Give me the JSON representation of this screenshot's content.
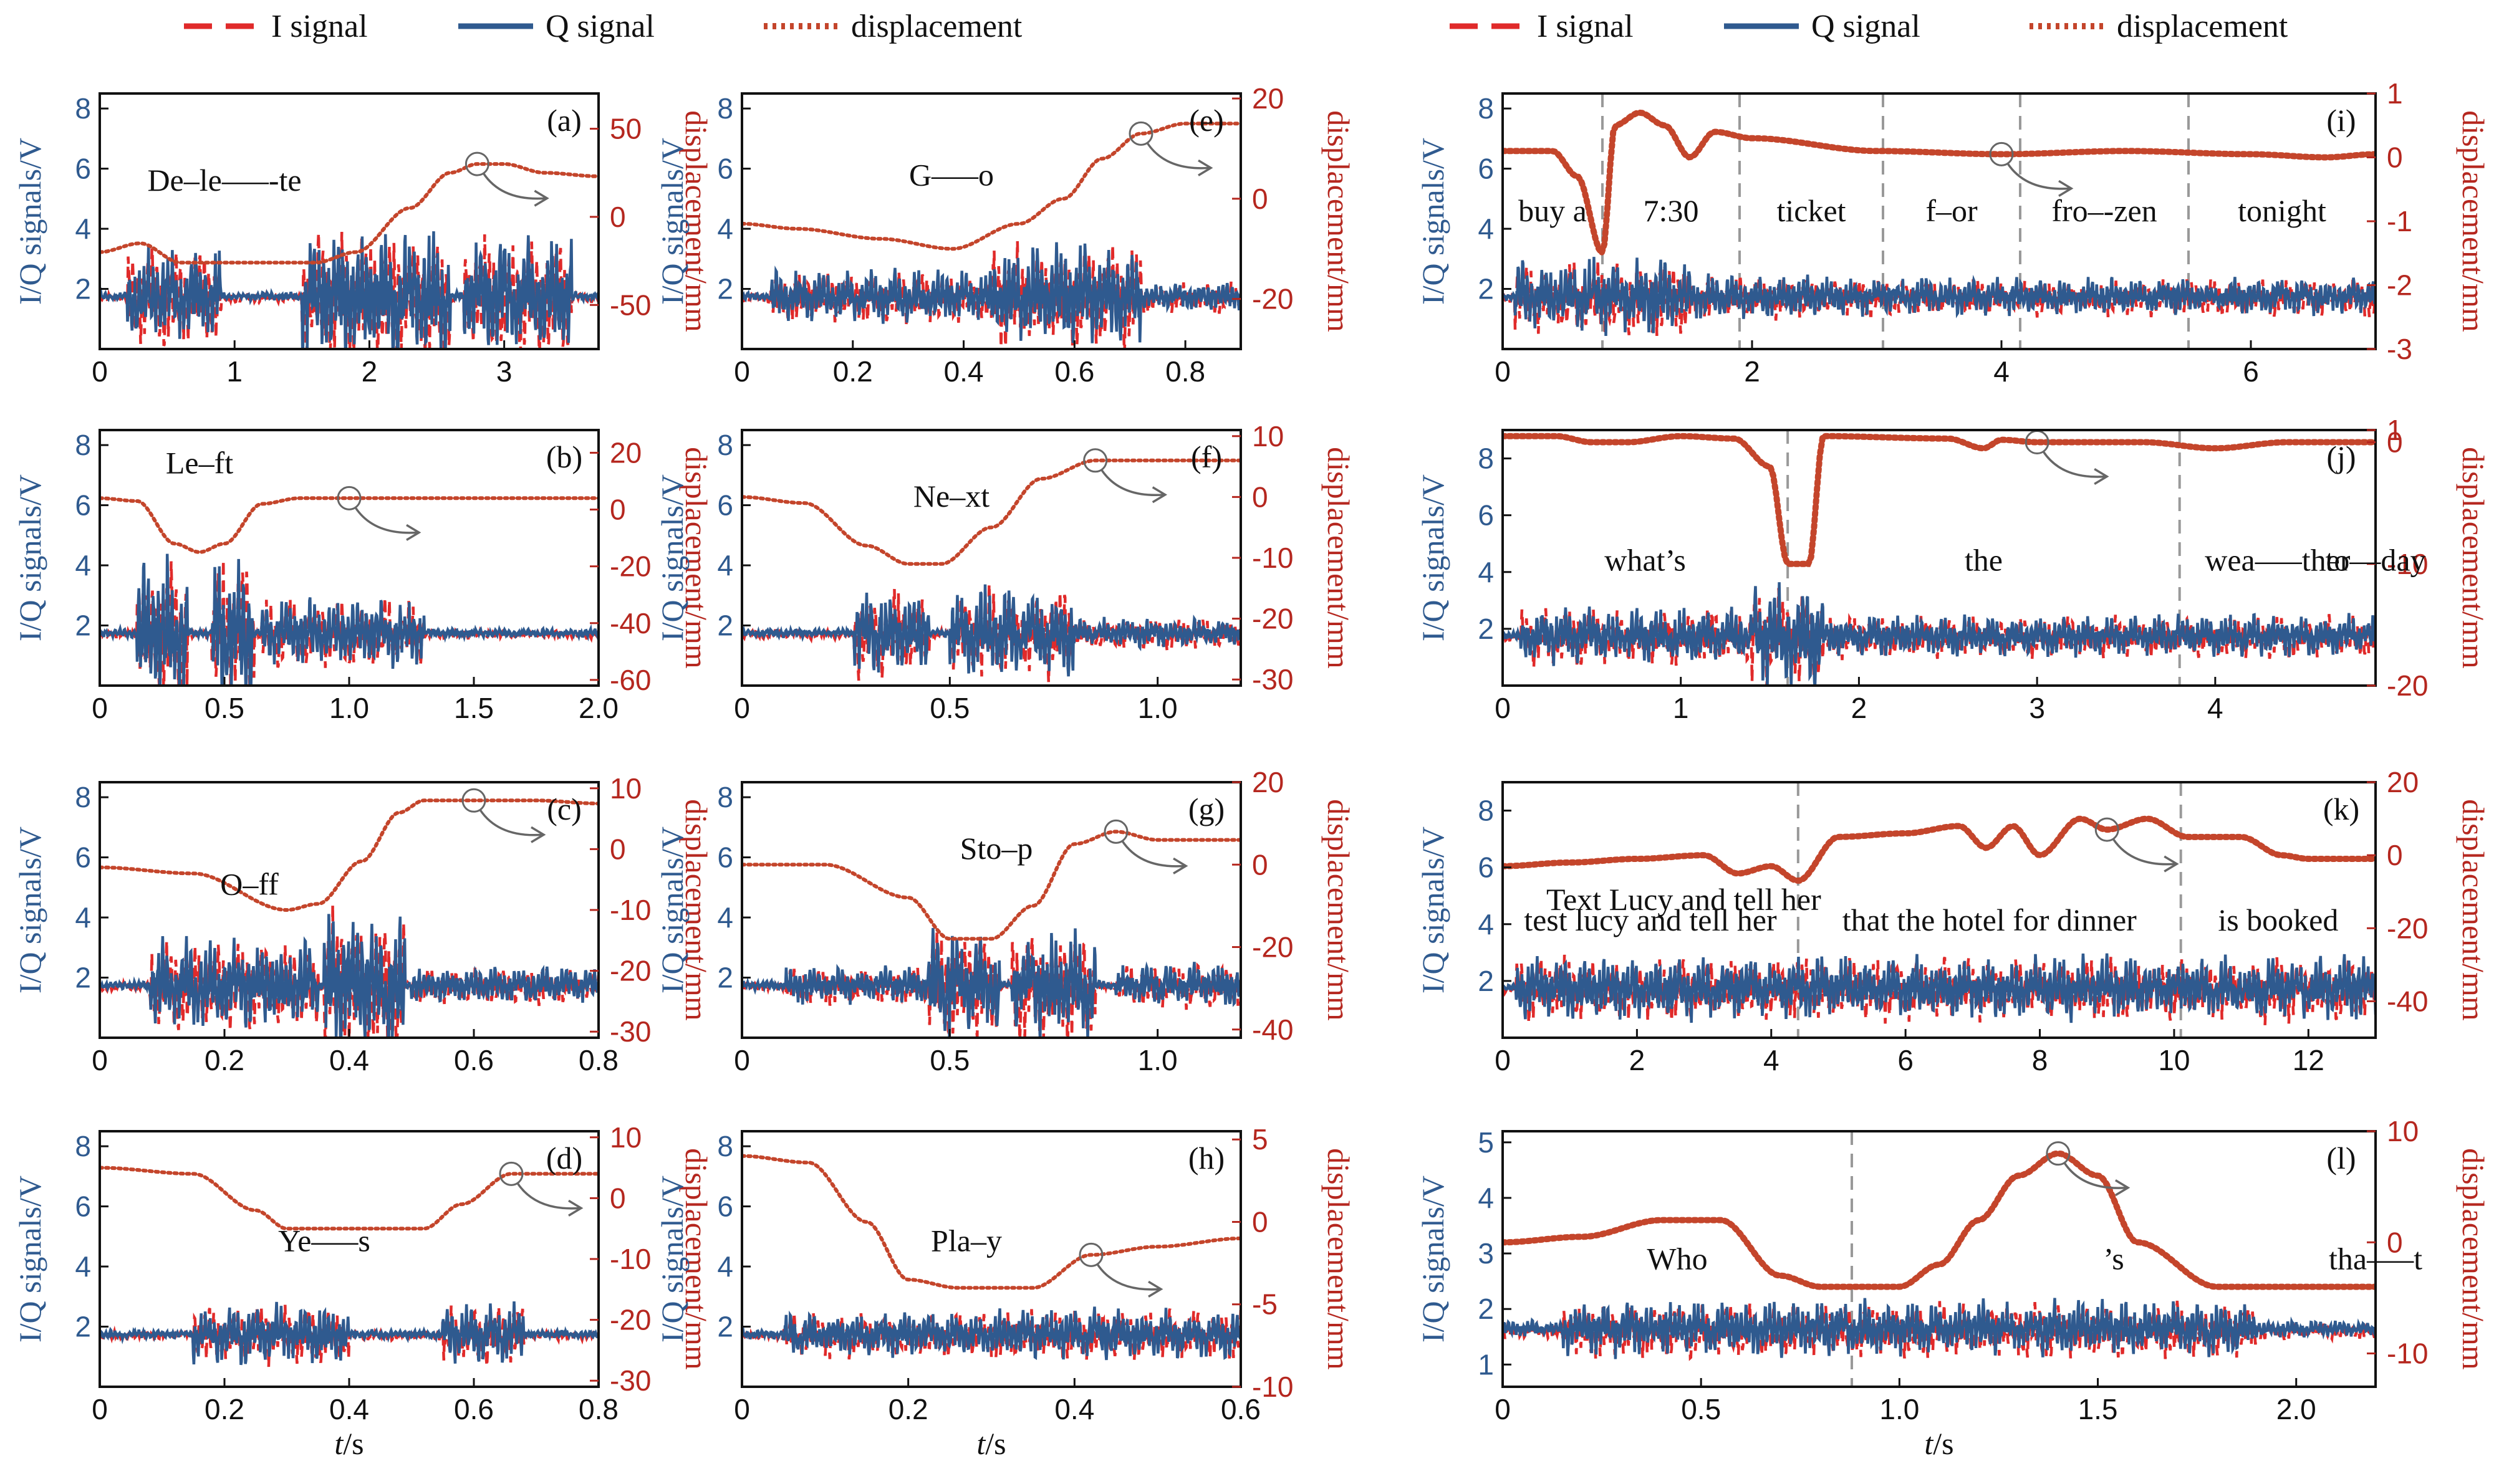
{
  "legend": [
    {
      "label": "I signal",
      "style": "dashed",
      "color": "#e02a2a"
    },
    {
      "label": "Q signal",
      "style": "solid",
      "color": "#2f5a8f"
    },
    {
      "label": "displacement",
      "style": "dotted",
      "color": "#c4452b"
    }
  ],
  "colors": {
    "i_signal": "#e02a2a",
    "q_signal": "#2f5a8f",
    "displacement": "#c4452b",
    "axis_right": "#b5271f",
    "axis_left": "#2f5a8f"
  },
  "left_axis_label": "I/Q signals/V",
  "right_axis_label": "displacement/mm",
  "x_axis_label_italic": "t",
  "x_axis_label_unit": "/s",
  "chart_data": [
    {
      "id": "a",
      "tag": "(a)",
      "type": "line",
      "words": [
        "De–le–––-te"
      ],
      "dividers": [],
      "xlim": [
        0,
        3.7
      ],
      "xticks": [
        0,
        1,
        2,
        3
      ],
      "xtick_labels": [
        "0",
        "1",
        "2",
        "3"
      ],
      "ylim": [
        0,
        8.5
      ],
      "yticks": [
        2,
        4,
        6,
        8
      ],
      "y2lim": [
        -75,
        70
      ],
      "y2ticks": [
        -50,
        0,
        50
      ],
      "bursts": [
        [
          0.2,
          0.9,
          1.3
        ],
        [
          1.5,
          2.6,
          1.8
        ],
        [
          2.7,
          3.5,
          1.7
        ]
      ],
      "displacement": {
        "x": [
          0,
          0.3,
          0.6,
          1.0,
          1.6,
          1.9,
          2.3,
          2.6,
          2.8,
          3.0,
          3.3,
          3.7
        ],
        "y": [
          -20,
          -15,
          -26,
          -26,
          -26,
          -20,
          5,
          25,
          30,
          30,
          25,
          23
        ]
      }
    },
    {
      "id": "b",
      "tag": "(b)",
      "type": "line",
      "words": [
        "Le–ft"
      ],
      "dividers": [],
      "xlim": [
        0,
        2.0
      ],
      "xticks": [
        0,
        0.5,
        1.0,
        1.5,
        2.0
      ],
      "xtick_labels": [
        "0",
        "0.5",
        "1.0",
        "1.5",
        "2.0"
      ],
      "ylim": [
        0,
        8.5
      ],
      "yticks": [
        2,
        4,
        6,
        8
      ],
      "y2lim": [
        -62,
        28
      ],
      "y2ticks": [
        -60,
        -40,
        -20,
        0,
        20
      ],
      "bursts": [
        [
          0.15,
          0.35,
          2.0
        ],
        [
          0.45,
          0.62,
          2.0
        ],
        [
          0.65,
          1.3,
          0.9
        ]
      ],
      "displacement": {
        "x": [
          0,
          0.15,
          0.3,
          0.4,
          0.5,
          0.65,
          0.8,
          1.0,
          1.5,
          2.0
        ],
        "y": [
          4,
          3,
          -12,
          -15,
          -12,
          2,
          4,
          4,
          4,
          4
        ]
      }
    },
    {
      "id": "c",
      "tag": "(c)",
      "type": "line",
      "words": [
        "O–ff"
      ],
      "dividers": [],
      "xlim": [
        0,
        0.8
      ],
      "xticks": [
        0,
        0.2,
        0.4,
        0.6,
        0.8
      ],
      "xtick_labels": [
        "0",
        "0.2",
        "0.4",
        "0.6",
        "0.8"
      ],
      "ylim": [
        0,
        8.5
      ],
      "yticks": [
        2,
        4,
        6,
        8
      ],
      "y2lim": [
        -31,
        11
      ],
      "y2ticks": [
        -30,
        -20,
        -10,
        0,
        10
      ],
      "bursts": [
        [
          0.08,
          0.35,
          1.2
        ],
        [
          0.36,
          0.49,
          2.0
        ],
        [
          0.5,
          0.8,
          0.5
        ]
      ],
      "displacement": {
        "x": [
          0,
          0.15,
          0.3,
          0.35,
          0.42,
          0.48,
          0.52,
          0.6,
          0.7,
          0.8
        ],
        "y": [
          -3,
          -4,
          -10,
          -9,
          -2,
          6,
          8,
          8,
          8,
          7.5
        ]
      }
    },
    {
      "id": "d",
      "tag": "(d)",
      "type": "line",
      "words": [
        "Ye–––s"
      ],
      "dividers": [],
      "xlim": [
        0,
        0.8
      ],
      "xticks": [
        0,
        0.2,
        0.4,
        0.6,
        0.8
      ],
      "xtick_labels": [
        "0",
        "0.2",
        "0.4",
        "0.6",
        "0.8"
      ],
      "ylim": [
        0,
        8.5
      ],
      "yticks": [
        2,
        4,
        6,
        8
      ],
      "y2lim": [
        -31,
        11
      ],
      "y2ticks": [
        -30,
        -20,
        -10,
        0,
        10
      ],
      "bursts": [
        [
          0.15,
          0.4,
          0.8
        ],
        [
          0.55,
          0.68,
          0.8
        ]
      ],
      "displacement": {
        "x": [
          0,
          0.15,
          0.25,
          0.3,
          0.4,
          0.52,
          0.58,
          0.66,
          0.75,
          0.8
        ],
        "y": [
          5,
          4,
          -2,
          -5,
          -5,
          -5,
          -1,
          4,
          4,
          4
        ]
      }
    },
    {
      "id": "e",
      "tag": "(e)",
      "type": "line",
      "words": [
        "G–––o"
      ],
      "dividers": [],
      "xlim": [
        0,
        0.9
      ],
      "xticks": [
        0,
        0.2,
        0.4,
        0.6,
        0.8
      ],
      "xtick_labels": [
        "0",
        "0.2",
        "0.4",
        "0.6",
        "0.8"
      ],
      "ylim": [
        0,
        8.5
      ],
      "yticks": [
        2,
        4,
        6,
        8
      ],
      "y2lim": [
        -30,
        21
      ],
      "y2ticks": [
        -20,
        0,
        20
      ],
      "bursts": [
        [
          0.05,
          0.45,
          0.7
        ],
        [
          0.45,
          0.72,
          1.4
        ],
        [
          0.72,
          0.9,
          0.4
        ]
      ],
      "displacement": {
        "x": [
          0,
          0.1,
          0.25,
          0.38,
          0.5,
          0.58,
          0.65,
          0.72,
          0.8,
          0.9
        ],
        "y": [
          -5,
          -6,
          -8,
          -10,
          -5,
          0,
          8,
          13,
          15,
          15
        ]
      }
    },
    {
      "id": "f",
      "tag": "(f)",
      "type": "line",
      "words": [
        "Ne–xt"
      ],
      "dividers": [],
      "xlim": [
        0,
        1.2
      ],
      "xticks": [
        0,
        0.5,
        1.0
      ],
      "xtick_labels": [
        "0",
        "0.5",
        "1.0"
      ],
      "ylim": [
        0,
        8.5
      ],
      "yticks": [
        2,
        4,
        6,
        8
      ],
      "y2lim": [
        -31,
        11
      ],
      "y2ticks": [
        -30,
        -20,
        -10,
        0,
        10
      ],
      "bursts": [
        [
          0.27,
          0.45,
          1.2
        ],
        [
          0.5,
          0.8,
          1.2
        ],
        [
          0.8,
          1.2,
          0.4
        ]
      ],
      "displacement": {
        "x": [
          0,
          0.15,
          0.3,
          0.4,
          0.48,
          0.6,
          0.72,
          0.85,
          1.0,
          1.2
        ],
        "y": [
          0,
          -1,
          -8,
          -11,
          -11,
          -5,
          3,
          6,
          6,
          6
        ]
      }
    },
    {
      "id": "g",
      "tag": "(g)",
      "type": "line",
      "words": [
        "Sto–p"
      ],
      "dividers": [],
      "xlim": [
        0,
        1.2
      ],
      "xticks": [
        0,
        0.5,
        1.0
      ],
      "xtick_labels": [
        "0",
        "0.5",
        "1.0"
      ],
      "ylim": [
        0,
        8.5
      ],
      "yticks": [
        2,
        4,
        6,
        8
      ],
      "y2lim": [
        -42,
        20
      ],
      "y2ticks": [
        -40,
        -20,
        0,
        20
      ],
      "bursts": [
        [
          0.1,
          0.45,
          0.5
        ],
        [
          0.45,
          0.62,
          1.5
        ],
        [
          0.65,
          0.85,
          1.5
        ],
        [
          0.9,
          1.2,
          0.6
        ]
      ],
      "displacement": {
        "x": [
          0,
          0.2,
          0.4,
          0.5,
          0.6,
          0.7,
          0.8,
          0.9,
          1.0,
          1.2
        ],
        "y": [
          0,
          0,
          -8,
          -18,
          -18,
          -10,
          5,
          8,
          6,
          6
        ]
      }
    },
    {
      "id": "h",
      "tag": "(h)",
      "type": "line",
      "words": [
        "Pla–y"
      ],
      "dividers": [],
      "xlim": [
        0,
        0.6
      ],
      "xticks": [
        0,
        0.2,
        0.4,
        0.6
      ],
      "xtick_labels": [
        "0",
        "0.2",
        "0.4",
        "0.6"
      ],
      "ylim": [
        0,
        8.5
      ],
      "yticks": [
        2,
        4,
        6,
        8
      ],
      "y2lim": [
        -10,
        5.5
      ],
      "y2ticks": [
        -10,
        -5,
        0,
        5
      ],
      "bursts": [
        [
          0.05,
          0.3,
          0.6
        ],
        [
          0.3,
          0.6,
          0.7
        ]
      ],
      "displacement": {
        "x": [
          0,
          0.08,
          0.15,
          0.2,
          0.26,
          0.35,
          0.42,
          0.5,
          0.6
        ],
        "y": [
          4,
          3.6,
          0,
          -3.5,
          -4,
          -4,
          -2,
          -1.5,
          -1
        ]
      }
    },
    {
      "id": "i",
      "tag": "(i)",
      "type": "line",
      "words": [
        "buy a",
        "7:30",
        "ticket",
        "f–or",
        "fro–-zen",
        "tonight"
      ],
      "dividers": [
        0.8,
        1.9,
        3.05,
        4.15,
        5.5
      ],
      "xlim": [
        0,
        7.0
      ],
      "xticks": [
        0,
        2,
        4,
        6
      ],
      "xtick_labels": [
        "0",
        "2",
        "4",
        "6"
      ],
      "ylim": [
        0,
        8.5
      ],
      "yticks": [
        2,
        4,
        6,
        8
      ],
      "y2lim": [
        -3,
        1
      ],
      "y2ticks": [
        -3,
        -2,
        -1,
        0,
        1
      ],
      "bursts": [
        [
          0.1,
          1.5,
          1.0
        ],
        [
          1.5,
          2.5,
          0.6
        ],
        [
          2.5,
          4.0,
          0.5
        ],
        [
          4.0,
          7.0,
          0.5
        ]
      ],
      "displacement": {
        "x": [
          0,
          0.4,
          0.6,
          0.8,
          0.9,
          1.1,
          1.3,
          1.5,
          1.7,
          2.0,
          3.0,
          4.0,
          5.0,
          6.0,
          6.6,
          7.0
        ],
        "y": [
          0.1,
          0.1,
          -0.3,
          -1.5,
          0.5,
          0.7,
          0.5,
          0,
          0.4,
          0.3,
          0.1,
          0.05,
          0.1,
          0.05,
          0,
          0.05
        ]
      }
    },
    {
      "id": "j",
      "tag": "(j)",
      "type": "line",
      "words": [
        "what’s",
        "the",
        "wea–––ther",
        "to––day"
      ],
      "dividers": [
        1.6,
        3.8
      ],
      "xlim": [
        0,
        4.9
      ],
      "xticks": [
        0,
        1,
        2,
        3,
        4
      ],
      "xtick_labels": [
        "0",
        "1",
        "2",
        "3",
        "4"
      ],
      "ylim": [
        0,
        9
      ],
      "yticks": [
        2,
        4,
        6,
        8
      ],
      "y2lim": [
        -20,
        1
      ],
      "y2ticks": [
        -20,
        -10,
        0,
        1
      ],
      "bursts": [
        [
          0.1,
          1.4,
          0.8
        ],
        [
          1.4,
          1.8,
          1.5
        ],
        [
          1.8,
          4.9,
          0.6
        ]
      ],
      "displacement": {
        "x": [
          0,
          0.3,
          0.5,
          0.7,
          1.0,
          1.3,
          1.5,
          1.6,
          1.72,
          1.8,
          2.5,
          2.7,
          2.8,
          3.0,
          3.6,
          4.0,
          4.4,
          4.6,
          4.9
        ],
        "y": [
          0.5,
          0.5,
          0,
          0,
          0.5,
          0.3,
          -2,
          -10,
          -10,
          0.5,
          0.3,
          -0.5,
          0.2,
          0,
          0,
          -0.5,
          0,
          0,
          0
        ]
      }
    },
    {
      "id": "k",
      "tag": "(k)",
      "type": "line",
      "words": [
        "test lucy and tell her",
        "that the hotel for dinner",
        "is booked"
      ],
      "watermark": "Text Lucy and tell her",
      "dividers": [
        4.4,
        10.1
      ],
      "xlim": [
        0,
        13.0
      ],
      "xticks": [
        0,
        2,
        4,
        6,
        8,
        10,
        12
      ],
      "xtick_labels": [
        "0",
        "2",
        "4",
        "6",
        "8",
        "10",
        "12"
      ],
      "ylim": [
        0,
        9
      ],
      "yticks": [
        2,
        4,
        6,
        8
      ],
      "y2lim": [
        -50,
        20
      ],
      "y2ticks": [
        -40,
        -20,
        0,
        20
      ],
      "bursts": [
        [
          0.2,
          13.0,
          0.9
        ]
      ],
      "displacement": {
        "x": [
          0,
          1,
          2,
          3,
          3.5,
          4,
          4.4,
          5,
          6,
          6.8,
          7.2,
          7.6,
          8,
          8.6,
          9,
          9.6,
          10.2,
          11,
          11.6,
          12,
          13
        ],
        "y": [
          -3,
          -2,
          -1,
          0,
          -5,
          -3,
          -7,
          5,
          6,
          8,
          2,
          8,
          0,
          10,
          7,
          10,
          5,
          5,
          0,
          -1,
          -1
        ]
      }
    },
    {
      "id": "l",
      "tag": "(l)",
      "type": "line",
      "words": [
        "Who",
        "’s",
        "tha–––t"
      ],
      "dividers": [
        0.88
      ],
      "xlim": [
        0,
        2.2
      ],
      "xticks": [
        0,
        0.5,
        1.0,
        1.5,
        2.0
      ],
      "xtick_labels": [
        "0",
        "0.5",
        "1.0",
        "1.5",
        "2.0"
      ],
      "ylim": [
        0.6,
        5.2
      ],
      "yticks": [
        1,
        2,
        3,
        4,
        5
      ],
      "y2lim": [
        -13,
        10
      ],
      "y2ticks": [
        -10,
        0,
        10
      ],
      "bursts": [
        [
          0.15,
          0.65,
          0.4
        ],
        [
          0.65,
          1.9,
          0.4
        ]
      ],
      "displacement": {
        "x": [
          0,
          0.2,
          0.4,
          0.55,
          0.7,
          0.8,
          1.0,
          1.1,
          1.2,
          1.3,
          1.4,
          1.5,
          1.6,
          1.8,
          2.2
        ],
        "y": [
          0,
          0.5,
          2,
          2,
          -3,
          -4,
          -4,
          -2,
          2,
          6,
          8,
          6,
          0,
          -4,
          -4
        ]
      }
    }
  ]
}
